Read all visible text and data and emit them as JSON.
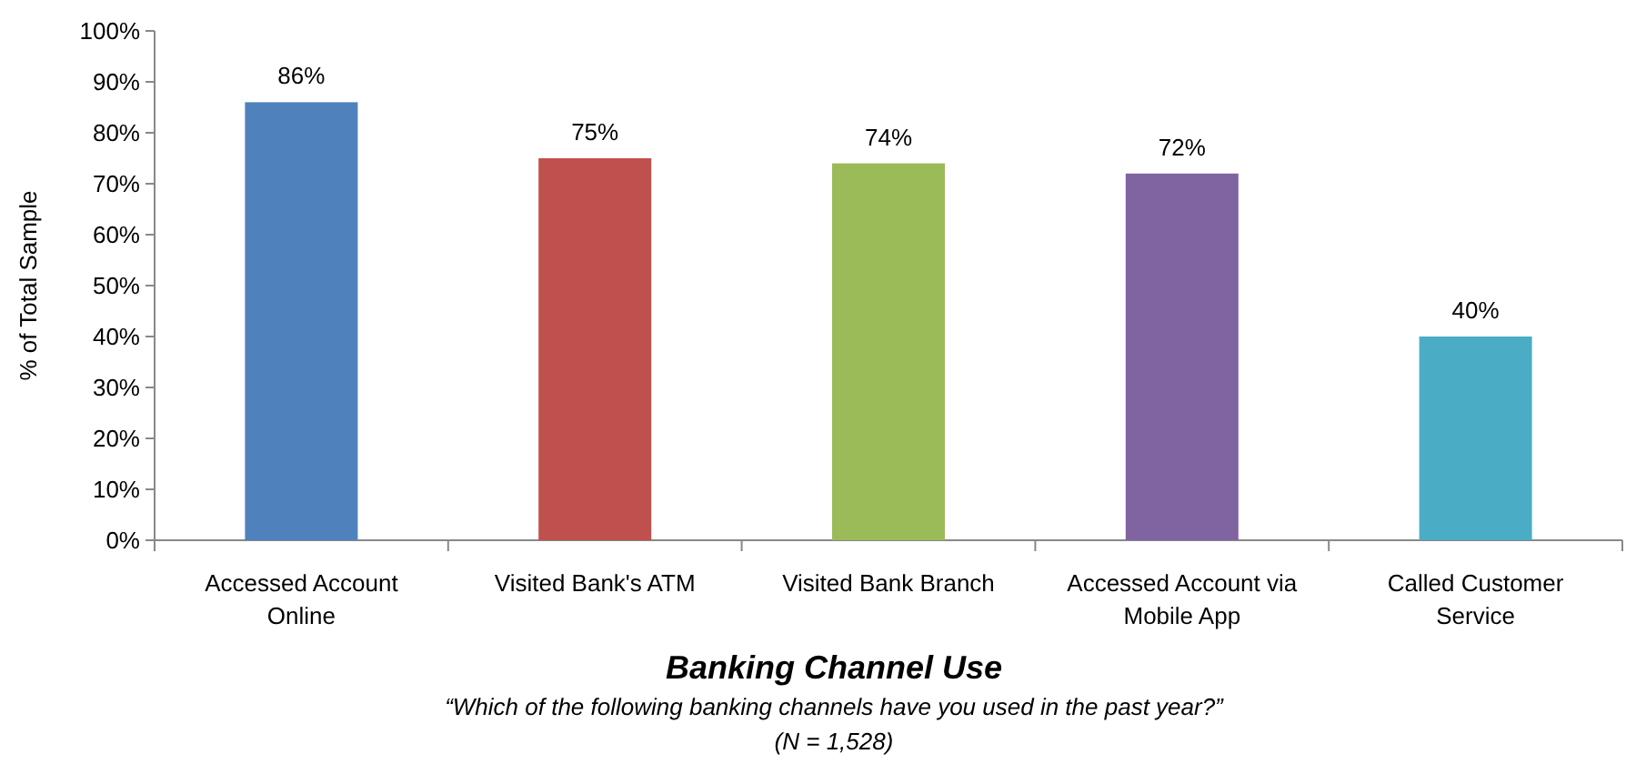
{
  "chart_data": {
    "type": "bar",
    "categories": [
      "Accessed Account Online",
      "Visited Bank's ATM",
      "Visited Bank Branch",
      "Accessed Account via Mobile App",
      "Called Customer Service"
    ],
    "values": [
      86,
      75,
      74,
      72,
      40
    ],
    "value_labels": [
      "86%",
      "75%",
      "74%",
      "72%",
      "40%"
    ],
    "colors": [
      "#4f81bd",
      "#c0504d",
      "#9bbb59",
      "#8064a2",
      "#4bacc6"
    ],
    "ylim": [
      0,
      100
    ],
    "yticks": [
      {
        "value": 0,
        "label": "0%"
      },
      {
        "value": 10,
        "label": "10%"
      },
      {
        "value": 20,
        "label": "20%"
      },
      {
        "value": 30,
        "label": "30%"
      },
      {
        "value": 40,
        "label": "40%"
      },
      {
        "value": 50,
        "label": "50%"
      },
      {
        "value": 60,
        "label": "60%"
      },
      {
        "value": 70,
        "label": "70%"
      },
      {
        "value": 80,
        "label": "80%"
      },
      {
        "value": 90,
        "label": "90%"
      },
      {
        "value": 100,
        "label": "100%"
      }
    ],
    "xlabel": "Banking Channel Use",
    "ylabel": "% of Total Sample",
    "annotations": [
      "“Which of the following banking channels have you used in the past year?”",
      "(N = 1,528)"
    ],
    "grid": false
  }
}
